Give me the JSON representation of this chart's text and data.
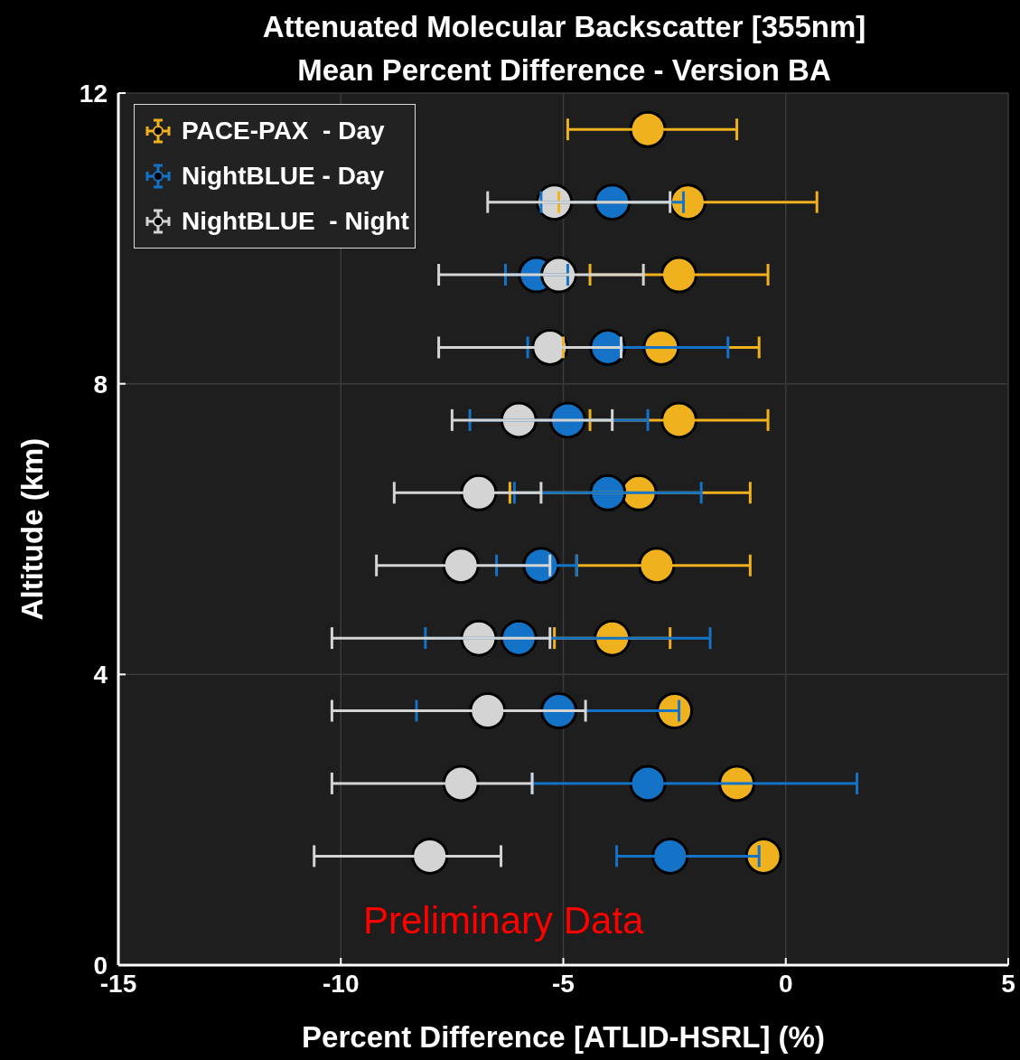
{
  "chart_data": {
    "type": "scatter",
    "title": "Attenuated Molecular Backscatter [355nm]",
    "subtitle": "Mean Percent Difference - Version BA",
    "xlabel": "Percent Difference [ATLID-HSRL] (%)",
    "ylabel": "Altitude (km)",
    "xlim": [
      -15,
      5
    ],
    "xticks": [
      -15,
      -10,
      -5,
      0,
      5
    ],
    "ylim": [
      0,
      12
    ],
    "yticks": [
      0,
      4,
      8,
      12
    ],
    "grid": true,
    "legend": "top left",
    "marker": "circle",
    "series": [
      {
        "name": "PACE-PAX  - Day",
        "color": "#efb21e",
        "x": [
          -3.1,
          -2.2,
          -2.4,
          -2.8,
          -2.4,
          -3.3,
          -2.9,
          -3.9,
          -2.5,
          -1.1,
          -0.5
        ],
        "values": [
          11.5,
          10.5,
          9.5,
          8.5,
          7.5,
          6.5,
          5.5,
          4.5,
          3.5,
          2.5,
          1.5
        ],
        "xerrors": [
          [
            -4.9,
            -1.1
          ],
          2.9,
          [
            -4.4,
            -0.4
          ],
          2.2,
          2.0,
          [
            -6.2,
            -0.8
          ],
          [
            -4.7,
            -0.8
          ],
          1.3,
          null,
          null,
          null
        ]
      },
      {
        "name": "NightBLUE - Day",
        "color": "#1473c6",
        "x": [
          -3.9,
          -5.6,
          -4.0,
          -4.9,
          -4.0,
          -5.5,
          -6.0,
          -5.1,
          -3.1,
          -2.6
        ],
        "values": [
          10.5,
          9.5,
          8.5,
          7.5,
          6.5,
          5.5,
          4.5,
          3.5,
          2.5,
          1.5
        ],
        "xerrors": [
          1.6,
          0.7,
          [
            -5.8,
            -1.3
          ],
          [
            -7.1,
            -3.1
          ],
          2.1,
          [
            -6.5,
            -4.7
          ],
          [
            -8.1,
            -1.7
          ],
          [
            -8.3,
            -2.4
          ],
          [
            -5.7,
            1.6
          ],
          [
            -3.8,
            -0.6
          ]
        ]
      },
      {
        "name": "NightBLUE  - Night",
        "color": "#d4d4d4",
        "x": [
          -5.2,
          -5.1,
          -5.3,
          -6.0,
          -6.9,
          -7.3,
          -6.9,
          -6.7,
          -7.3,
          -8.0
        ],
        "values": [
          10.5,
          9.5,
          8.5,
          7.5,
          6.5,
          5.5,
          4.5,
          3.5,
          2.5,
          1.5
        ],
        "xerrors": [
          [
            -6.7,
            -2.6
          ],
          [
            -7.8,
            -3.2
          ],
          [
            -7.8,
            -3.7
          ],
          [
            -7.5,
            -3.9
          ],
          [
            -8.8,
            -5.5
          ],
          [
            -9.2,
            -5.3
          ],
          [
            -10.2,
            -5.3
          ],
          [
            -10.2,
            -4.5
          ],
          [
            -10.2,
            -5.7
          ],
          [
            -10.6,
            -6.4
          ]
        ]
      }
    ],
    "annotations": [
      "Preliminary Data"
    ]
  }
}
